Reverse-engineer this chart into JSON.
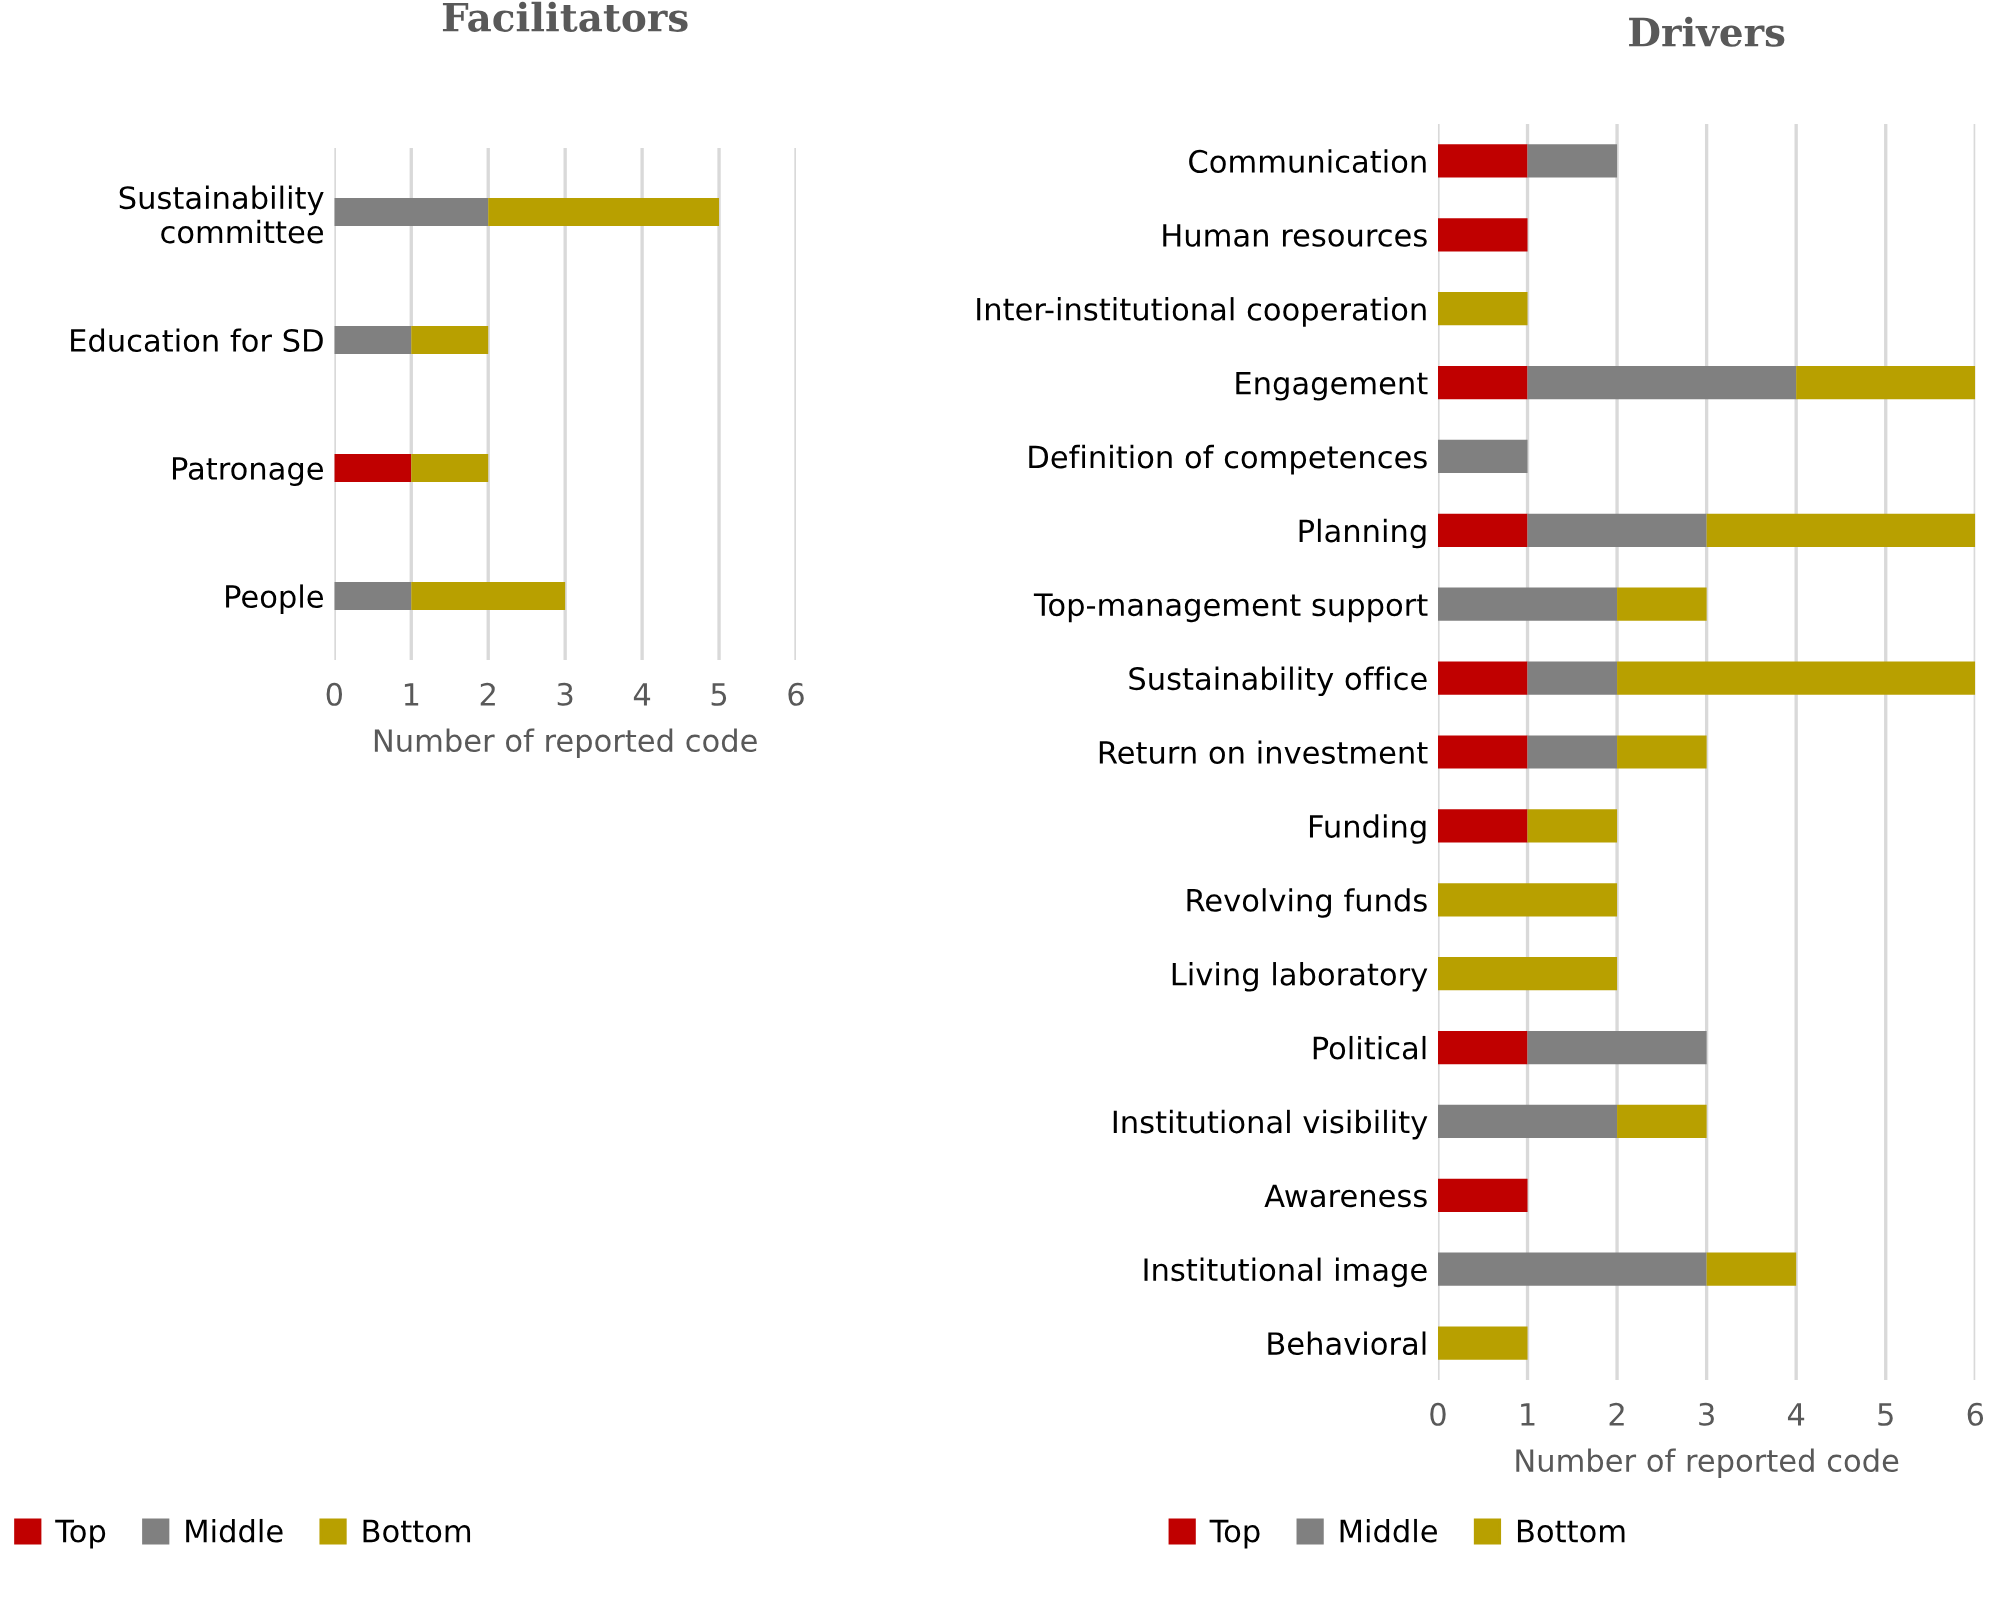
{
  "chart_data": [
    {
      "type": "bar",
      "orientation": "horizontal",
      "stacked": true,
      "title": "Facilitators",
      "xlabel": "Number of reported code",
      "categories": [
        "Sustainability\ncommittee",
        "Education for SD",
        "Patronage",
        "People"
      ],
      "series": [
        {
          "name": "Top",
          "color": "#c00000",
          "values": [
            0,
            0,
            1,
            0
          ]
        },
        {
          "name": "Middle",
          "color": "#808080",
          "values": [
            2,
            1,
            0,
            1
          ]
        },
        {
          "name": "Bottom",
          "color": "#b8a000",
          "values": [
            3,
            1,
            1,
            2
          ]
        }
      ],
      "xlim": [
        0,
        6
      ],
      "xticks": [
        0,
        1,
        2,
        3,
        4,
        5,
        6
      ],
      "grid": "x",
      "legend": "bottom"
    },
    {
      "type": "bar",
      "orientation": "horizontal",
      "stacked": true,
      "title": "Drivers",
      "xlabel": "Number of reported code",
      "categories": [
        "Communication",
        "Human resources",
        "Inter-institutional cooperation",
        "Engagement",
        "Definition of competences",
        "Planning",
        "Top-management support",
        "Sustainability office",
        "Return on investment",
        "Funding",
        "Revolving funds",
        "Living laboratory",
        "Political",
        "Institutional visibility",
        "Awareness",
        "Institutional image",
        "Behavioral"
      ],
      "series": [
        {
          "name": "Top",
          "color": "#c00000",
          "values": [
            1,
            1,
            0,
            1,
            0,
            1,
            0,
            1,
            1,
            1,
            0,
            0,
            1,
            0,
            1,
            0,
            0
          ]
        },
        {
          "name": "Middle",
          "color": "#808080",
          "values": [
            1,
            0,
            0,
            3,
            1,
            2,
            2,
            1,
            1,
            0,
            0,
            0,
            2,
            2,
            0,
            3,
            0
          ]
        },
        {
          "name": "Bottom",
          "color": "#b8a000",
          "values": [
            0,
            0,
            1,
            2,
            0,
            3,
            1,
            4,
            1,
            1,
            2,
            2,
            0,
            1,
            0,
            1,
            1
          ]
        }
      ],
      "xlim": [
        0,
        6
      ],
      "xticks": [
        0,
        1,
        2,
        3,
        4,
        5,
        6
      ],
      "grid": "x",
      "legend": "bottom"
    }
  ]
}
